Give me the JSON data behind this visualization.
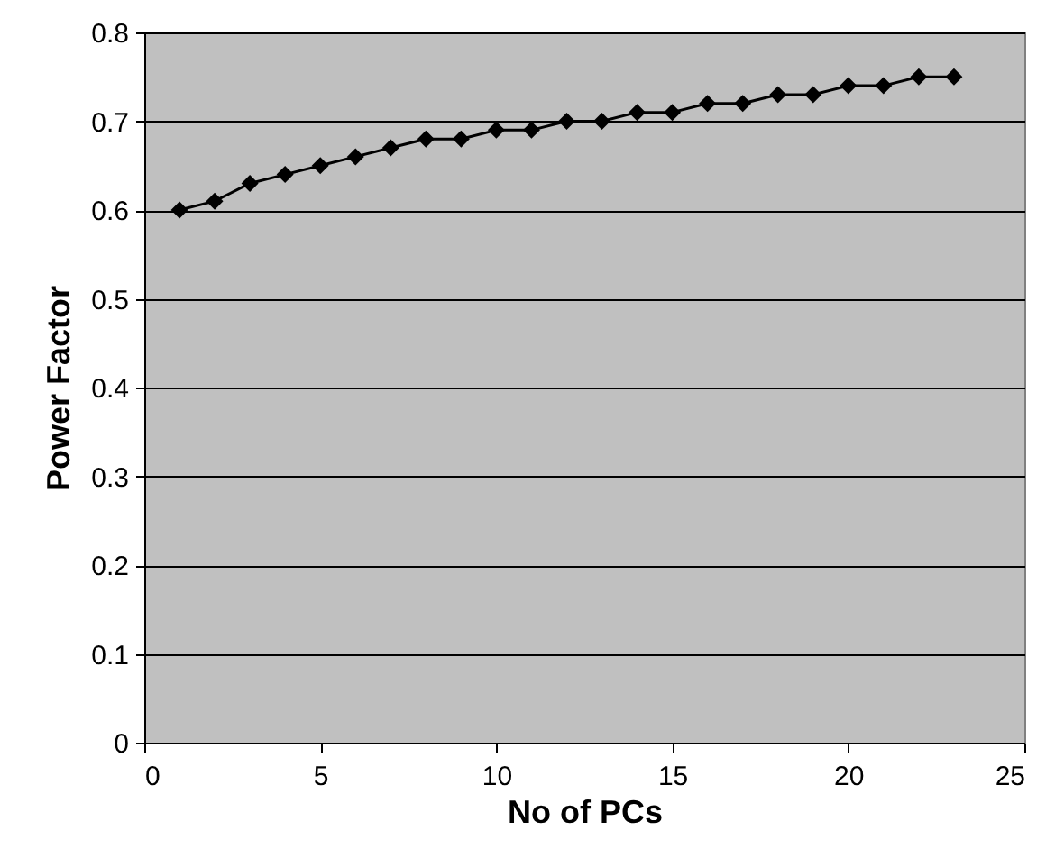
{
  "chart_data": {
    "type": "line",
    "xlabel": "No of PCs",
    "ylabel": "Power Factor",
    "x": [
      1,
      2,
      3,
      4,
      5,
      6,
      7,
      8,
      9,
      10,
      11,
      12,
      13,
      14,
      15,
      16,
      17,
      18,
      19,
      20,
      21,
      22,
      23
    ],
    "series": [
      {
        "color": "#000000",
        "values": [
          0.6,
          0.61,
          0.63,
          0.64,
          0.65,
          0.66,
          0.67,
          0.68,
          0.68,
          0.69,
          0.69,
          0.7,
          0.7,
          0.71,
          0.71,
          0.72,
          0.72,
          0.73,
          0.73,
          0.74,
          0.74,
          0.75,
          0.75
        ]
      }
    ],
    "xlim": [
      0,
      25
    ],
    "xticks": [
      0,
      5,
      10,
      15,
      20,
      25
    ],
    "ylim": [
      0,
      0.8
    ],
    "yticks": [
      0,
      0.1,
      0.2,
      0.3,
      0.4,
      0.5,
      0.6,
      0.7,
      0.8
    ],
    "grid": "y",
    "marker": "diamond",
    "line_style": "solid"
  }
}
